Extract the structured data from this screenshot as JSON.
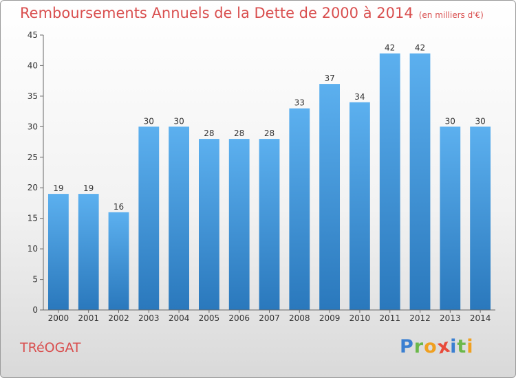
{
  "header": {
    "title": "Remboursements Annuels de la Dette de 2000 à 2014",
    "unit": "(en milliers d'€)"
  },
  "footer": {
    "commune": "TRéOGAT",
    "logo_letters": [
      "P",
      "r",
      "o",
      "x",
      "i",
      "t",
      "i"
    ],
    "logo_colors": [
      "#3a7fd1",
      "#6bb84a",
      "#f0a020",
      "#e84a3a",
      "#3a7fd1",
      "#6bb84a",
      "#f0a020"
    ]
  },
  "chart_data": {
    "type": "bar",
    "title": "Remboursements Annuels de la Dette de 2000 à 2014",
    "xlabel": "",
    "ylabel": "",
    "categories": [
      "2000",
      "2001",
      "2002",
      "2003",
      "2004",
      "2005",
      "2006",
      "2007",
      "2008",
      "2009",
      "2010",
      "2011",
      "2012",
      "2013",
      "2014"
    ],
    "values": [
      19,
      19,
      16,
      30,
      30,
      28,
      28,
      28,
      33,
      37,
      34,
      42,
      42,
      30,
      30
    ],
    "ylim": [
      0,
      45
    ],
    "yticks": [
      0,
      5,
      10,
      15,
      20,
      25,
      30,
      35,
      40,
      45
    ],
    "grid": false,
    "bar_color_top": "#5cb0ef",
    "bar_color_bottom": "#2a78bc"
  }
}
